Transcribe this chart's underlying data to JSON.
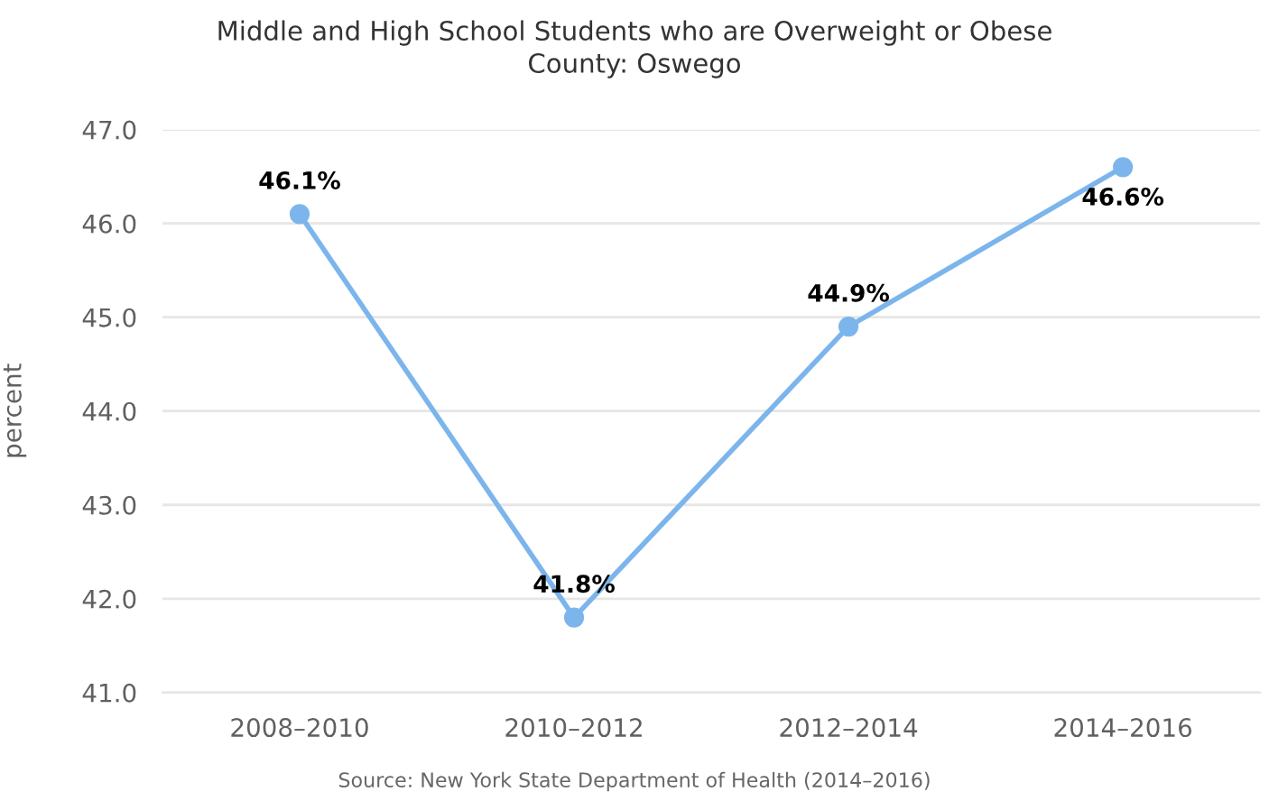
{
  "chart_data": {
    "type": "line",
    "title": "Middle and High School Students who are Overweight or Obese\nCounty: Oswego",
    "ylabel": "percent",
    "categories": [
      "2008–2010",
      "2010–2012",
      "2012–2014",
      "2014–2016"
    ],
    "values": [
      46.1,
      41.8,
      44.9,
      46.6
    ],
    "value_labels": [
      "46.1%",
      "41.8%",
      "44.9%",
      "46.6%"
    ],
    "color": "#7cb5ec",
    "ylim": [
      41.0,
      47.0
    ],
    "yticks": [
      {
        "value": 41,
        "label": "41.0"
      },
      {
        "value": 42,
        "label": "42.0"
      },
      {
        "value": 43,
        "label": "43.0"
      },
      {
        "value": 44,
        "label": "44.0"
      },
      {
        "value": 45,
        "label": "45.0"
      },
      {
        "value": 46,
        "label": "46.0"
      },
      {
        "value": 47,
        "label": "47.0"
      }
    ],
    "grid": "y",
    "marker": "circle",
    "line_style": "solid",
    "legend": false,
    "annotations": [
      "Source: New York State Department of Health (2014–2016)"
    ]
  }
}
